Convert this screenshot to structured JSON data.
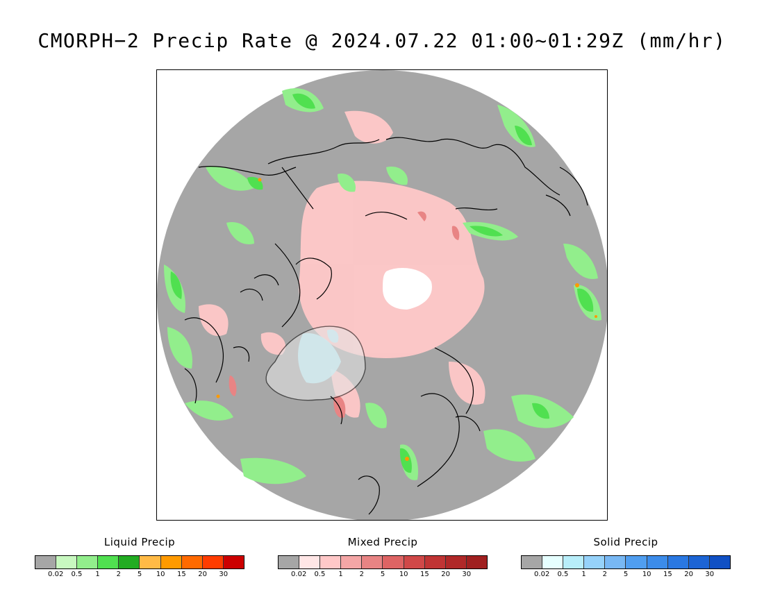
{
  "title": "CMORPH−2 Precip Rate @ 2024.07.22 01:00~01:29Z (mm/hr)",
  "colors": {
    "land_bg": "#a6a6a6",
    "no_data": "#ffffff",
    "coastline": "#000000"
  },
  "legends": [
    {
      "title": "Liquid Precip",
      "colors": [
        "#a6a6a6",
        "#c8f8c0",
        "#92ee8c",
        "#50e050",
        "#22ac22",
        "#ffba46",
        "#ff9a00",
        "#ff6a00",
        "#ff3c00",
        "#cc0000"
      ],
      "ticks": [
        "0.02",
        "0.5",
        "1",
        "2",
        "5",
        "10",
        "15",
        "20",
        "30"
      ]
    },
    {
      "title": "Mixed Precip",
      "colors": [
        "#a6a6a6",
        "#ffe6e6",
        "#ffc8c8",
        "#f4a6a6",
        "#e88484",
        "#de6464",
        "#d04848",
        "#c03434",
        "#b02828",
        "#a02020"
      ],
      "ticks": [
        "0.02",
        "0.5",
        "1",
        "2",
        "5",
        "10",
        "15",
        "20",
        "30"
      ]
    },
    {
      "title": "Solid Precip",
      "colors": [
        "#a6a6a6",
        "#e6ffff",
        "#b8eefa",
        "#96d2fa",
        "#78b8f4",
        "#509ef0",
        "#3c8cea",
        "#2a78e2",
        "#1c64d4",
        "#1050c4"
      ],
      "ticks": [
        "0.02",
        "0.5",
        "1",
        "2",
        "5",
        "10",
        "15",
        "20",
        "30"
      ]
    }
  ]
}
